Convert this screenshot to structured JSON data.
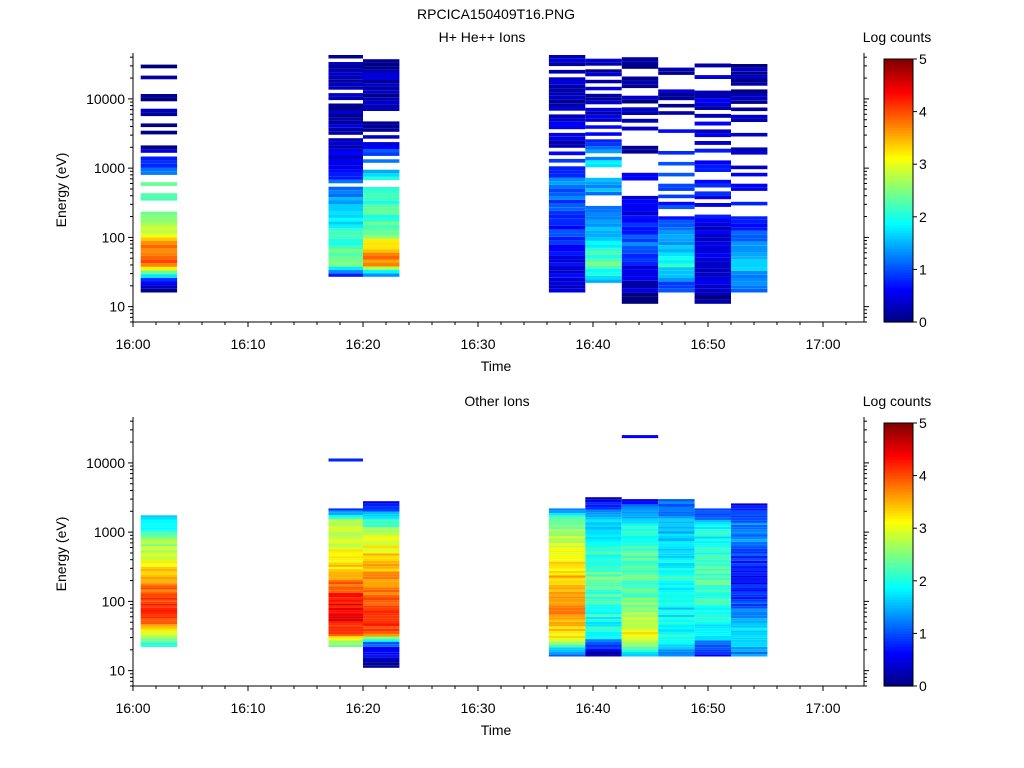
{
  "figure_title": "RPCICA150409T16.PNG",
  "chart_data": [
    {
      "type": "heatmap",
      "title": "H+ He++ Ions",
      "xlabel": "Time",
      "ylabel": "Energy (eV)",
      "x_ticks": [
        "16:00",
        "16:10",
        "16:20",
        "16:30",
        "16:40",
        "16:50",
        "17:00"
      ],
      "y_scale": "log",
      "y_ticks": [
        "10",
        "100",
        "1000",
        "10000"
      ],
      "colorbar_label": "Log counts",
      "colorbar_ticks": [
        "0",
        "1",
        "2",
        "3",
        "4",
        "5"
      ],
      "zlim": [
        0,
        5
      ],
      "colormap": [
        "#00007f",
        "#0000ff",
        "#007fff",
        "#00ffff",
        "#7fff7f",
        "#ffff00",
        "#ff7f00",
        "#ff0000",
        "#7f0000"
      ],
      "columns": [
        {
          "start": "16:00:40",
          "end": "16:03:50",
          "profile": [
            [
              19,
              0.2
            ],
            [
              25,
              0.8
            ],
            [
              35,
              3.4
            ],
            [
              45,
              3.9
            ],
            [
              60,
              3.6
            ],
            [
              80,
              3.8
            ],
            [
              120,
              3.0
            ],
            [
              250,
              2.5
            ],
            [
              700,
              2.1
            ],
            [
              900,
              1.3
            ],
            [
              2000,
              0.2
            ],
            [
              25000,
              0.2
            ]
          ],
          "emin": 16,
          "emax": 40000,
          "fill": 0.55
        },
        {
          "start": "16:17:00",
          "end": "16:20:00",
          "profile": [
            [
              28,
              0.9
            ],
            [
              40,
              2.5
            ],
            [
              70,
              2.2
            ],
            [
              150,
              1.9
            ],
            [
              400,
              1.4
            ],
            [
              800,
              0.9
            ],
            [
              1500,
              0.5
            ],
            [
              5000,
              0.3
            ],
            [
              40000,
              0.2
            ]
          ],
          "emin": 27,
          "emax": 43000,
          "fill": 0.9
        },
        {
          "start": "16:20:00",
          "end": "16:23:10",
          "profile": [
            [
              30,
              1.2
            ],
            [
              40,
              3.8
            ],
            [
              60,
              3.6
            ],
            [
              90,
              3.0
            ],
            [
              150,
              2.2
            ],
            [
              500,
              2.0
            ],
            [
              1200,
              1.5
            ],
            [
              2500,
              0.3
            ],
            [
              40000,
              0.2
            ]
          ],
          "emin": 27,
          "emax": 42000,
          "fill": 0.7
        },
        {
          "start": "16:36:10",
          "end": "16:39:20",
          "profile": [
            [
              30,
              0.5
            ],
            [
              80,
              0.8
            ],
            [
              200,
              0.9
            ],
            [
              600,
              1.2
            ],
            [
              1500,
              0.6
            ],
            [
              5000,
              0.3
            ],
            [
              40000,
              0.2
            ]
          ],
          "emin": 16,
          "emax": 43000,
          "fill": 0.72
        },
        {
          "start": "16:39:20",
          "end": "16:42:30",
          "profile": [
            [
              25,
              1.6
            ],
            [
              40,
              2.4
            ],
            [
              80,
              1.9
            ],
            [
              200,
              1.1
            ],
            [
              600,
              1.5
            ],
            [
              1200,
              1.6
            ],
            [
              5000,
              0.3
            ],
            [
              40000,
              0.2
            ]
          ],
          "emin": 22,
          "emax": 38000,
          "fill": 0.6
        },
        {
          "start": "16:42:30",
          "end": "16:45:40",
          "profile": [
            [
              13,
              0.2
            ],
            [
              40,
              0.6
            ],
            [
              80,
              1.2
            ],
            [
              200,
              0.5
            ],
            [
              1000,
              0.4
            ],
            [
              5000,
              0.2
            ],
            [
              40000,
              0.2
            ]
          ],
          "emin": 11,
          "emax": 40000,
          "fill": 0.55
        },
        {
          "start": "16:45:40",
          "end": "16:48:50",
          "profile": [
            [
              20,
              0.9
            ],
            [
              40,
              2.0
            ],
            [
              80,
              1.6
            ],
            [
              200,
              0.8
            ],
            [
              800,
              1.0
            ],
            [
              5000,
              0.3
            ],
            [
              35000,
              0.2
            ]
          ],
          "emin": 16,
          "emax": 36000,
          "fill": 0.55
        },
        {
          "start": "16:48:50",
          "end": "16:52:00",
          "profile": [
            [
              13,
              0.2
            ],
            [
              40,
              0.6
            ],
            [
              100,
              0.4
            ],
            [
              500,
              0.7
            ],
            [
              2000,
              0.5
            ],
            [
              40000,
              0.3
            ]
          ],
          "emin": 11,
          "emax": 42000,
          "fill": 0.6
        },
        {
          "start": "16:52:00",
          "end": "16:55:10",
          "profile": [
            [
              20,
              1.2
            ],
            [
              40,
              1.6
            ],
            [
              80,
              1.2
            ],
            [
              200,
              0.6
            ],
            [
              800,
              0.4
            ],
            [
              5000,
              0.2
            ],
            [
              35000,
              0.2
            ]
          ],
          "emin": 16,
          "emax": 36000,
          "fill": 0.5
        }
      ]
    },
    {
      "type": "heatmap",
      "title": "Other Ions",
      "xlabel": "Time",
      "ylabel": "Energy (eV)",
      "x_ticks": [
        "16:00",
        "16:10",
        "16:20",
        "16:30",
        "16:40",
        "16:50",
        "17:00"
      ],
      "y_scale": "log",
      "y_ticks": [
        "10",
        "100",
        "1000",
        "10000"
      ],
      "colorbar_label": "Log counts",
      "colorbar_ticks": [
        "0",
        "1",
        "2",
        "3",
        "4",
        "5"
      ],
      "zlim": [
        0,
        5
      ],
      "colormap": [
        "#00007f",
        "#0000ff",
        "#007fff",
        "#00ffff",
        "#7fff7f",
        "#ffff00",
        "#ff7f00",
        "#ff0000",
        "#7f0000"
      ],
      "columns": [
        {
          "start": "16:00:40",
          "end": "16:03:50",
          "profile": [
            [
              24,
              2.0
            ],
            [
              30,
              2.6
            ],
            [
              40,
              3.3
            ],
            [
              60,
              4.2
            ],
            [
              120,
              4.0
            ],
            [
              250,
              3.4
            ],
            [
              500,
              2.8
            ],
            [
              1000,
              2.3
            ],
            [
              1700,
              1.4
            ]
          ],
          "emin": 22,
          "emax": 1750,
          "fill": 1.0
        },
        {
          "start": "16:17:00",
          "end": "16:20:00",
          "profile": [
            [
              24,
              2.4
            ],
            [
              30,
              3.4
            ],
            [
              40,
              4.3
            ],
            [
              70,
              4.5
            ],
            [
              150,
              4.1
            ],
            [
              300,
              3.3
            ],
            [
              700,
              3.0
            ],
            [
              1500,
              2.6
            ],
            [
              2100,
              1.0
            ]
          ],
          "emin": 22,
          "emax": 2200,
          "fill": 1.0,
          "extra": [
            [
              11000,
              0.8
            ]
          ]
        },
        {
          "start": "16:20:00",
          "end": "16:23:10",
          "profile": [
            [
              12,
              0.2
            ],
            [
              25,
              1.0
            ],
            [
              35,
              4.1
            ],
            [
              60,
              4.2
            ],
            [
              150,
              3.8
            ],
            [
              300,
              3.5
            ],
            [
              800,
              3.0
            ],
            [
              1500,
              2.0
            ],
            [
              2800,
              0.4
            ]
          ],
          "emin": 11,
          "emax": 2800,
          "fill": 1.0
        },
        {
          "start": "16:36:10",
          "end": "16:39:20",
          "profile": [
            [
              18,
              1.3
            ],
            [
              30,
              3.2
            ],
            [
              60,
              3.7
            ],
            [
              200,
              3.5
            ],
            [
              600,
              3.0
            ],
            [
              1500,
              2.5
            ],
            [
              2200,
              1.0
            ]
          ],
          "emin": 16,
          "emax": 2200,
          "fill": 1.0
        },
        {
          "start": "16:39:20",
          "end": "16:42:30",
          "profile": [
            [
              18,
              0.2
            ],
            [
              30,
              1.8
            ],
            [
              80,
              2.1
            ],
            [
              200,
              2.4
            ],
            [
              600,
              2.0
            ],
            [
              1500,
              1.6
            ],
            [
              3000,
              0.5
            ]
          ],
          "emin": 16,
          "emax": 3200,
          "fill": 1.0
        },
        {
          "start": "16:42:30",
          "end": "16:45:40",
          "profile": [
            [
              18,
              1.6
            ],
            [
              30,
              3.2
            ],
            [
              60,
              2.6
            ],
            [
              150,
              2.2
            ],
            [
              500,
              2.3
            ],
            [
              1500,
              1.8
            ],
            [
              3000,
              0.6
            ]
          ],
          "emin": 16,
          "emax": 3000,
          "fill": 1.0,
          "extra": [
            [
              24000,
              0.6
            ]
          ]
        },
        {
          "start": "16:45:40",
          "end": "16:48:50",
          "profile": [
            [
              18,
              1.4
            ],
            [
              30,
              1.9
            ],
            [
              80,
              1.8
            ],
            [
              200,
              2.0
            ],
            [
              600,
              1.6
            ],
            [
              1500,
              1.5
            ],
            [
              3000,
              1.0
            ]
          ],
          "emin": 16,
          "emax": 3000,
          "fill": 1.0
        },
        {
          "start": "16:48:50",
          "end": "16:52:00",
          "profile": [
            [
              18,
              0.8
            ],
            [
              30,
              1.6
            ],
            [
              80,
              2.1
            ],
            [
              200,
              2.3
            ],
            [
              500,
              2.1
            ],
            [
              1200,
              1.8
            ],
            [
              2200,
              0.7
            ]
          ],
          "emin": 16,
          "emax": 2200,
          "fill": 1.0
        },
        {
          "start": "16:52:00",
          "end": "16:55:10",
          "profile": [
            [
              18,
              1.3
            ],
            [
              30,
              1.8
            ],
            [
              80,
              1.1
            ],
            [
              200,
              0.6
            ],
            [
              500,
              1.0
            ],
            [
              1000,
              1.4
            ],
            [
              2600,
              0.6
            ]
          ],
          "emin": 16,
          "emax": 2600,
          "fill": 1.0
        }
      ]
    }
  ]
}
